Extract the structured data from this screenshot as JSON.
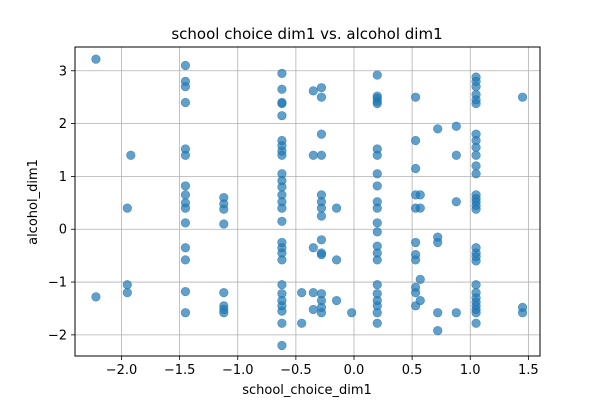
{
  "chart_data": {
    "type": "scatter",
    "title": "school choice dim1 vs. alcohol dim1",
    "xlabel": "school_choice_dim1",
    "ylabel": "alcohol_dim1",
    "xlim": [
      -2.4,
      1.6
    ],
    "ylim": [
      -2.4,
      3.45
    ],
    "xticks": [
      -2.0,
      -1.5,
      -1.0,
      -0.5,
      0.0,
      0.5,
      1.0,
      1.5
    ],
    "xtick_labels": [
      "−2.0",
      "−1.5",
      "−1.0",
      "−0.5",
      "0.0",
      "0.5",
      "1.0",
      "1.5"
    ],
    "yticks": [
      -2,
      -1,
      0,
      1,
      2,
      3
    ],
    "ytick_labels": [
      "−2",
      "−1",
      "0",
      "1",
      "2",
      "3"
    ],
    "grid": true,
    "legend": "none",
    "color": "#1f77b4",
    "point_alpha": 0.7,
    "points": [
      {
        "x": -2.22,
        "y": 3.22
      },
      {
        "x": -2.22,
        "y": -1.28
      },
      {
        "x": -1.95,
        "y": 0.4
      },
      {
        "x": -1.95,
        "y": -1.05
      },
      {
        "x": -1.95,
        "y": -1.2
      },
      {
        "x": -1.92,
        "y": 1.4
      },
      {
        "x": -1.45,
        "y": 3.1
      },
      {
        "x": -1.45,
        "y": 2.8
      },
      {
        "x": -1.45,
        "y": 2.7
      },
      {
        "x": -1.45,
        "y": 2.4
      },
      {
        "x": -1.45,
        "y": 1.52
      },
      {
        "x": -1.45,
        "y": 1.4
      },
      {
        "x": -1.45,
        "y": 0.82
      },
      {
        "x": -1.45,
        "y": 0.65
      },
      {
        "x": -1.45,
        "y": 0.5
      },
      {
        "x": -1.45,
        "y": 0.4
      },
      {
        "x": -1.45,
        "y": 0.12
      },
      {
        "x": -1.45,
        "y": -0.35
      },
      {
        "x": -1.45,
        "y": -0.58
      },
      {
        "x": -1.45,
        "y": -1.18
      },
      {
        "x": -1.45,
        "y": -1.58
      },
      {
        "x": -1.12,
        "y": 0.6
      },
      {
        "x": -1.12,
        "y": 0.48
      },
      {
        "x": -1.12,
        "y": 0.38
      },
      {
        "x": -1.12,
        "y": 0.1
      },
      {
        "x": -1.12,
        "y": -1.2
      },
      {
        "x": -1.12,
        "y": -1.45
      },
      {
        "x": -1.12,
        "y": -1.52
      },
      {
        "x": -1.12,
        "y": -1.58
      },
      {
        "x": -0.62,
        "y": 2.95
      },
      {
        "x": -0.62,
        "y": 2.65
      },
      {
        "x": -0.62,
        "y": 2.4
      },
      {
        "x": -0.62,
        "y": 2.38
      },
      {
        "x": -0.62,
        "y": 2.15
      },
      {
        "x": -0.62,
        "y": 1.68
      },
      {
        "x": -0.62,
        "y": 1.58
      },
      {
        "x": -0.62,
        "y": 1.48
      },
      {
        "x": -0.62,
        "y": 1.4
      },
      {
        "x": -0.62,
        "y": 1.05
      },
      {
        "x": -0.62,
        "y": 0.92
      },
      {
        "x": -0.62,
        "y": 0.8
      },
      {
        "x": -0.62,
        "y": 0.65
      },
      {
        "x": -0.62,
        "y": 0.52
      },
      {
        "x": -0.62,
        "y": 0.4
      },
      {
        "x": -0.62,
        "y": 0.15
      },
      {
        "x": -0.62,
        "y": -0.25
      },
      {
        "x": -0.62,
        "y": -0.35
      },
      {
        "x": -0.62,
        "y": -0.45
      },
      {
        "x": -0.62,
        "y": -0.58
      },
      {
        "x": -0.62,
        "y": -1.05
      },
      {
        "x": -0.62,
        "y": -1.22
      },
      {
        "x": -0.62,
        "y": -1.35
      },
      {
        "x": -0.62,
        "y": -1.45
      },
      {
        "x": -0.62,
        "y": -1.55
      },
      {
        "x": -0.62,
        "y": -1.78
      },
      {
        "x": -0.62,
        "y": -2.2
      },
      {
        "x": -0.45,
        "y": -1.78
      },
      {
        "x": -0.45,
        "y": -1.2
      },
      {
        "x": -0.35,
        "y": 2.62
      },
      {
        "x": -0.35,
        "y": 1.4
      },
      {
        "x": -0.35,
        "y": -0.35
      },
      {
        "x": -0.35,
        "y": -1.2
      },
      {
        "x": -0.35,
        "y": -1.52
      },
      {
        "x": -0.28,
        "y": 2.68
      },
      {
        "x": -0.28,
        "y": 2.5
      },
      {
        "x": -0.28,
        "y": 1.8
      },
      {
        "x": -0.28,
        "y": 1.4
      },
      {
        "x": -0.28,
        "y": 0.65
      },
      {
        "x": -0.28,
        "y": 0.52
      },
      {
        "x": -0.28,
        "y": 0.4
      },
      {
        "x": -0.28,
        "y": 0.25
      },
      {
        "x": -0.28,
        "y": -0.2
      },
      {
        "x": -0.28,
        "y": -0.45
      },
      {
        "x": -0.28,
        "y": -0.48
      },
      {
        "x": -0.28,
        "y": -1.22
      },
      {
        "x": -0.28,
        "y": -1.35
      },
      {
        "x": -0.28,
        "y": -1.48
      },
      {
        "x": -0.28,
        "y": -1.58
      },
      {
        "x": -0.15,
        "y": 0.4
      },
      {
        "x": -0.15,
        "y": -0.58
      },
      {
        "x": -0.15,
        "y": -1.35
      },
      {
        "x": -0.02,
        "y": -1.58
      },
      {
        "x": 0.2,
        "y": 2.92
      },
      {
        "x": 0.2,
        "y": 2.52
      },
      {
        "x": 0.2,
        "y": 2.48
      },
      {
        "x": 0.2,
        "y": 2.42
      },
      {
        "x": 0.2,
        "y": 2.38
      },
      {
        "x": 0.2,
        "y": 1.52
      },
      {
        "x": 0.2,
        "y": 1.4
      },
      {
        "x": 0.2,
        "y": 1.05
      },
      {
        "x": 0.2,
        "y": 0.82
      },
      {
        "x": 0.2,
        "y": 0.52
      },
      {
        "x": 0.2,
        "y": 0.4
      },
      {
        "x": 0.2,
        "y": 0.12
      },
      {
        "x": 0.2,
        "y": -0.05
      },
      {
        "x": 0.2,
        "y": -0.32
      },
      {
        "x": 0.2,
        "y": -0.45
      },
      {
        "x": 0.2,
        "y": -0.58
      },
      {
        "x": 0.2,
        "y": -1.05
      },
      {
        "x": 0.2,
        "y": -1.22
      },
      {
        "x": 0.2,
        "y": -1.35
      },
      {
        "x": 0.2,
        "y": -1.45
      },
      {
        "x": 0.2,
        "y": -1.58
      },
      {
        "x": 0.2,
        "y": -1.78
      },
      {
        "x": 0.53,
        "y": 2.5
      },
      {
        "x": 0.53,
        "y": 1.68
      },
      {
        "x": 0.53,
        "y": 1.15
      },
      {
        "x": 0.53,
        "y": 0.65
      },
      {
        "x": 0.53,
        "y": 0.4
      },
      {
        "x": 0.53,
        "y": -0.25
      },
      {
        "x": 0.53,
        "y": -0.48
      },
      {
        "x": 0.53,
        "y": -0.58
      },
      {
        "x": 0.53,
        "y": -1.1
      },
      {
        "x": 0.53,
        "y": -1.2
      },
      {
        "x": 0.53,
        "y": -1.45
      },
      {
        "x": 0.57,
        "y": 0.65
      },
      {
        "x": 0.57,
        "y": 0.4
      },
      {
        "x": 0.57,
        "y": -0.95
      },
      {
        "x": 0.57,
        "y": -1.35
      },
      {
        "x": 0.72,
        "y": 1.9
      },
      {
        "x": 0.72,
        "y": -0.15
      },
      {
        "x": 0.72,
        "y": -0.25
      },
      {
        "x": 0.72,
        "y": -1.58
      },
      {
        "x": 0.72,
        "y": -1.92
      },
      {
        "x": 0.88,
        "y": 1.95
      },
      {
        "x": 0.88,
        "y": 1.4
      },
      {
        "x": 0.88,
        "y": 0.52
      },
      {
        "x": 0.88,
        "y": -1.58
      },
      {
        "x": 1.05,
        "y": 2.88
      },
      {
        "x": 1.05,
        "y": 2.8
      },
      {
        "x": 1.05,
        "y": 2.7
      },
      {
        "x": 1.05,
        "y": 2.55
      },
      {
        "x": 1.05,
        "y": 2.45
      },
      {
        "x": 1.05,
        "y": 2.38
      },
      {
        "x": 1.05,
        "y": 1.8
      },
      {
        "x": 1.05,
        "y": 1.68
      },
      {
        "x": 1.05,
        "y": 1.55
      },
      {
        "x": 1.05,
        "y": 1.4
      },
      {
        "x": 1.05,
        "y": 1.2
      },
      {
        "x": 1.05,
        "y": 1.05
      },
      {
        "x": 1.05,
        "y": 0.65
      },
      {
        "x": 1.05,
        "y": 0.58
      },
      {
        "x": 1.05,
        "y": 0.52
      },
      {
        "x": 1.05,
        "y": 0.45
      },
      {
        "x": 1.05,
        "y": 0.38
      },
      {
        "x": 1.05,
        "y": -0.35
      },
      {
        "x": 1.05,
        "y": -0.45
      },
      {
        "x": 1.05,
        "y": -0.52
      },
      {
        "x": 1.05,
        "y": -0.6
      },
      {
        "x": 1.05,
        "y": -1.05
      },
      {
        "x": 1.05,
        "y": -1.2
      },
      {
        "x": 1.05,
        "y": -1.3
      },
      {
        "x": 1.05,
        "y": -1.38
      },
      {
        "x": 1.05,
        "y": -1.45
      },
      {
        "x": 1.05,
        "y": -1.52
      },
      {
        "x": 1.05,
        "y": -1.58
      },
      {
        "x": 1.05,
        "y": -1.78
      },
      {
        "x": 1.45,
        "y": 2.5
      },
      {
        "x": 1.45,
        "y": -1.48
      },
      {
        "x": 1.45,
        "y": -1.58
      }
    ]
  }
}
